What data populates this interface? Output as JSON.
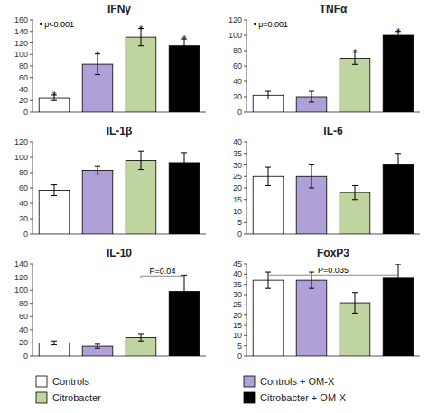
{
  "chart_data": [
    {
      "type": "bar",
      "title": "IFNγ",
      "categories": [
        null,
        null,
        null,
        null
      ],
      "values": [
        25,
        83,
        130,
        115
      ],
      "errors": [
        5,
        18,
        15,
        12
      ],
      "colors": [
        "white",
        "#b0a0d8",
        "#c0d4a0",
        "black"
      ],
      "ylim": [
        0,
        160
      ],
      "yticks": [
        0,
        20,
        40,
        60,
        80,
        100,
        120,
        140,
        160
      ],
      "bar_labels": [
        "*",
        "*",
        "*",
        "*"
      ],
      "annotation": "• p<0.001",
      "grid": false,
      "tick_labels": "y"
    },
    {
      "type": "bar",
      "title": "TNFα",
      "categories": [
        null,
        null,
        null,
        null
      ],
      "values": [
        22,
        20,
        70,
        100
      ],
      "errors": [
        5,
        7,
        8,
        5
      ],
      "colors": [
        "white",
        "#b0a0d8",
        "#c0d4a0",
        "black"
      ],
      "ylim": [
        0,
        120
      ],
      "yticks": [
        0,
        20,
        40,
        60,
        80,
        100,
        120
      ],
      "bar_labels": [
        null,
        null,
        "*",
        "*"
      ],
      "annotation": "• p=0.001",
      "grid": false,
      "tick_labels": "y"
    },
    {
      "type": "bar",
      "title": "IL-1β",
      "categories": [
        null,
        null,
        null,
        null
      ],
      "values": [
        57,
        83,
        96,
        93
      ],
      "errors": [
        7,
        5,
        12,
        13
      ],
      "colors": [
        "white",
        "#b0a0d8",
        "#c0d4a0",
        "black"
      ],
      "ylim": [
        0,
        120
      ],
      "yticks": [
        0,
        20,
        40,
        60,
        80,
        100,
        120
      ],
      "grid": false,
      "tick_labels": "y"
    },
    {
      "type": "bar",
      "title": "IL-6",
      "categories": [
        null,
        null,
        null,
        null
      ],
      "values": [
        25,
        25,
        18,
        30
      ],
      "errors": [
        4,
        5,
        3,
        5
      ],
      "colors": [
        "white",
        "#b0a0d8",
        "#c0d4a0",
        "black"
      ],
      "ylim": [
        0,
        40
      ],
      "yticks": [
        0,
        5,
        10,
        15,
        20,
        25,
        30,
        35,
        40
      ],
      "grid": false,
      "tick_labels": "y"
    },
    {
      "type": "bar",
      "title": "IL-10",
      "categories": [
        null,
        null,
        null,
        null
      ],
      "values": [
        20,
        15,
        28,
        98
      ],
      "errors": [
        3,
        3,
        5,
        25
      ],
      "colors": [
        "white",
        "#b0a0d8",
        "#c0d4a0",
        "black"
      ],
      "ylim": [
        0,
        140
      ],
      "yticks": [
        0,
        20,
        40,
        60,
        80,
        100,
        120,
        140
      ],
      "bracket": {
        "from_index": 2,
        "to_index": 3,
        "y": 121.8,
        "text": "P=0.04"
      },
      "grid": false,
      "tick_labels": "y"
    },
    {
      "type": "bar",
      "title": "FoxP3",
      "categories": [
        "Controls",
        "Controls + OM-X",
        "Citrobacter",
        "Citrobacter + OM-X"
      ],
      "values": [
        37,
        37,
        26,
        38
      ],
      "errors": [
        4,
        4,
        5,
        7
      ],
      "colors": [
        "white",
        "#b0a0d8",
        "#c0d4a0",
        "black"
      ],
      "ylim": [
        0,
        45
      ],
      "yticks": [
        0,
        5,
        10,
        15,
        20,
        25,
        30,
        35,
        40,
        45
      ],
      "bracket": {
        "from_index": 0,
        "to_index": 3,
        "y": 39.6,
        "text": "P=0.035"
      },
      "grid": false,
      "tick_labels": "y",
      "legend": "bottom"
    }
  ]
}
